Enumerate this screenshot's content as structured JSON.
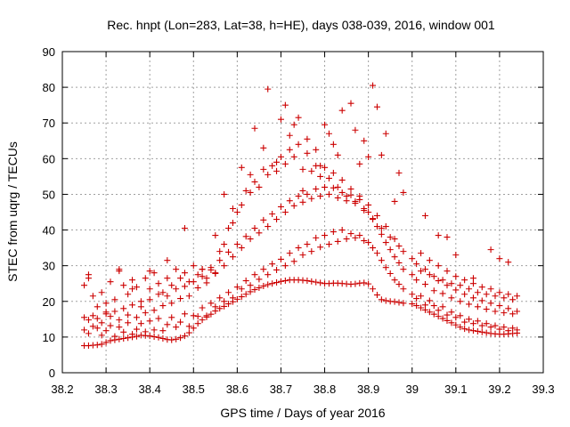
{
  "chart_data": {
    "type": "scatter",
    "title": "Rec. hnpt (Lon=283, Lat=38, h=HE), days 038-039, 2016, window 001",
    "xlabel": "GPS time / Days of year 2016",
    "ylabel": "STEC from uqrg / TECUs",
    "xlim": [
      38.2,
      39.3
    ],
    "ylim": [
      0,
      90
    ],
    "xticks": [
      "38.2",
      "38.3",
      "38.4",
      "38.5",
      "38.6",
      "38.7",
      "38.8",
      "38.9",
      "39",
      "39.1",
      "39.2",
      "39.3"
    ],
    "yticks": [
      "0",
      "10",
      "20",
      "30",
      "40",
      "50",
      "60",
      "70",
      "80",
      "90"
    ],
    "grid": true,
    "marker": "plus",
    "color": "#cc0000",
    "series": [
      {
        "x": [
          38.25,
          38.26,
          38.27,
          38.28,
          38.29,
          38.3,
          38.31,
          38.32,
          38.33,
          38.34,
          38.35,
          38.36,
          38.37,
          38.38,
          38.39,
          38.4,
          38.41,
          38.42,
          38.43,
          38.44,
          38.45,
          38.46,
          38.47,
          38.48,
          38.49,
          38.5,
          38.51,
          38.52,
          38.53,
          38.54,
          38.55,
          38.56,
          38.57,
          38.58,
          38.59,
          38.6,
          38.61,
          38.62,
          38.63,
          38.64,
          38.65,
          38.66,
          38.67,
          38.68,
          38.69,
          38.7,
          38.71,
          38.72,
          38.73,
          38.74,
          38.75,
          38.76,
          38.77,
          38.78,
          38.79,
          38.8,
          38.81,
          38.82,
          38.83,
          38.84,
          38.85,
          38.86,
          38.87,
          38.88,
          38.89,
          38.9,
          38.91,
          38.92,
          38.93,
          38.94,
          38.95,
          38.96,
          38.97,
          38.98,
          39.0,
          39.01,
          39.02,
          39.03,
          39.04,
          39.05,
          39.06,
          39.07,
          39.08,
          39.09,
          39.1,
          39.11,
          39.12,
          39.13,
          39.14,
          39.15,
          39.16,
          39.17,
          39.18,
          39.19,
          39.2,
          39.21,
          39.22,
          39.23,
          39.24
        ],
        "y": [
          7.6,
          7.6,
          7.7,
          7.8,
          8.0,
          8.5,
          9.0,
          9.2,
          9.4,
          9.6,
          9.8,
          10.0,
          10.2,
          10.5,
          10.4,
          10.3,
          10.1,
          9.9,
          9.6,
          9.3,
          9.2,
          9.4,
          9.8,
          10.3,
          11.2,
          12.5,
          13.8,
          14.8,
          15.6,
          16.4,
          17.3,
          18.0,
          18.6,
          19.3,
          19.9,
          20.6,
          21.3,
          22.0,
          22.7,
          23.3,
          23.8,
          24.3,
          24.7,
          25.0,
          25.3,
          25.6,
          25.8,
          26.0,
          26.0,
          26.0,
          25.9,
          25.8,
          25.6,
          25.4,
          25.2,
          25.0,
          25.0,
          25.1,
          25.1,
          25.0,
          24.9,
          24.8,
          24.9,
          25.1,
          25.2,
          24.9,
          23.5,
          21.8,
          20.5,
          20.2,
          20.0,
          19.9,
          19.7,
          19.5,
          19.3,
          18.8,
          18.2,
          17.6,
          17.0,
          16.4,
          15.8,
          15.2,
          14.6,
          14.0,
          13.4,
          12.8,
          12.3,
          12.0,
          11.8,
          11.6,
          11.4,
          11.2,
          11.0,
          10.9,
          10.8,
          10.8,
          10.9,
          11.0,
          11.1
        ]
      },
      {
        "x": [
          38.25,
          38.26,
          38.27,
          38.28,
          38.29,
          38.3,
          38.31,
          38.32,
          38.33,
          38.34,
          38.35,
          38.36,
          38.37,
          38.38,
          38.39,
          38.4,
          38.41,
          38.42,
          38.43,
          38.44,
          38.45,
          38.46,
          38.47,
          38.48,
          38.49,
          38.5,
          38.51,
          38.52,
          38.53,
          38.54,
          38.55,
          38.56,
          38.57,
          38.58,
          38.59,
          38.6,
          38.61,
          38.62,
          38.63,
          38.64,
          38.65,
          38.66,
          38.67,
          38.68,
          38.69,
          38.7,
          38.71,
          38.72,
          38.73,
          38.74,
          38.75,
          38.76,
          38.77,
          38.78,
          38.79,
          38.8,
          38.81,
          38.82,
          38.83,
          38.84,
          38.85,
          38.86,
          38.87,
          38.88,
          38.89,
          38.9,
          38.91,
          38.92,
          38.93,
          38.94,
          38.95,
          38.96,
          38.97,
          38.98,
          39.0,
          39.01,
          39.02,
          39.03,
          39.04,
          39.05,
          39.06,
          39.07,
          39.08,
          39.09,
          39.1,
          39.11,
          39.12,
          39.13,
          39.14,
          39.15,
          39.16,
          39.17,
          39.18,
          39.19,
          39.2,
          39.21,
          39.22,
          39.23,
          39.24
        ],
        "y": [
          12.0,
          11.0,
          13.0,
          12.5,
          10.5,
          11.8,
          13.2,
          10.2,
          12.8,
          11.4,
          14.0,
          10.8,
          12.2,
          13.8,
          11.5,
          14.5,
          12.0,
          15.2,
          11.8,
          13.5,
          15.5,
          12.8,
          14.2,
          16.5,
          13.0,
          16.0,
          15.8,
          18.2,
          16.0,
          19.5,
          18.5,
          21.0,
          20.0,
          22.5,
          21.0,
          24.0,
          23.5,
          25.8,
          24.5,
          27.5,
          26.2,
          29.0,
          27.5,
          30.5,
          28.8,
          31.8,
          30.0,
          33.5,
          31.2,
          35.0,
          33.0,
          36.0,
          34.0,
          37.8,
          35.2,
          38.5,
          36.0,
          39.5,
          36.8,
          40.0,
          37.5,
          39.0,
          37.8,
          38.5,
          37.0,
          36.5,
          35.0,
          33.5,
          31.5,
          29.5,
          27.8,
          26.0,
          24.8,
          23.5,
          22.0,
          20.8,
          21.5,
          19.0,
          20.2,
          18.8,
          17.5,
          18.5,
          16.2,
          17.0,
          15.5,
          16.0,
          14.2,
          15.0,
          13.8,
          14.5,
          13.2,
          13.8,
          12.8,
          13.2,
          12.2,
          12.8,
          11.8,
          12.5,
          12.0
        ]
      },
      {
        "x": [
          38.25,
          38.26,
          38.27,
          38.28,
          38.29,
          38.3,
          38.31,
          38.32,
          38.33,
          38.34,
          38.35,
          38.36,
          38.37,
          38.38,
          38.39,
          38.4,
          38.41,
          38.42,
          38.43,
          38.44,
          38.45,
          38.46,
          38.47,
          38.48,
          38.49,
          38.5,
          38.51,
          38.52,
          38.53,
          38.54,
          38.55,
          38.56,
          38.57,
          38.58,
          38.59,
          38.6,
          38.61,
          38.62,
          38.63,
          38.64,
          38.65,
          38.66,
          38.67,
          38.68,
          38.69,
          38.7,
          38.71,
          38.72,
          38.73,
          38.74,
          38.75,
          38.76,
          38.77,
          38.78,
          38.79,
          38.8,
          38.81,
          38.82,
          38.83,
          38.84,
          38.85,
          38.86,
          38.87,
          38.88,
          38.89,
          38.9,
          38.91,
          38.92,
          38.93,
          38.94,
          38.95,
          38.96,
          38.97,
          38.98,
          39.0,
          39.01,
          39.02,
          39.03,
          39.04,
          39.05,
          39.06,
          39.07,
          39.08,
          39.09,
          39.1,
          39.11,
          39.12,
          39.13,
          39.14,
          39.15,
          39.16,
          39.17,
          39.18,
          39.19,
          39.2,
          39.21,
          39.22,
          39.23,
          39.24
        ],
        "y": [
          15.5,
          14.8,
          16.0,
          15.2,
          14.0,
          16.5,
          15.8,
          17.2,
          14.8,
          18.0,
          16.2,
          19.0,
          15.5,
          18.5,
          16.8,
          20.5,
          17.5,
          22.0,
          18.8,
          21.5,
          19.5,
          23.5,
          20.8,
          24.2,
          21.5,
          25.5,
          23.8,
          27.0,
          25.2,
          28.8,
          27.8,
          31.5,
          30.0,
          33.8,
          32.5,
          36.0,
          35.0,
          38.2,
          37.5,
          40.5,
          39.2,
          42.8,
          41.0,
          44.5,
          43.0,
          46.5,
          45.0,
          48.2,
          46.8,
          49.5,
          47.8,
          50.0,
          48.8,
          51.5,
          49.5,
          52.0,
          50.0,
          51.8,
          49.0,
          50.5,
          48.2,
          49.8,
          47.5,
          48.5,
          46.0,
          45.0,
          43.2,
          41.0,
          38.8,
          36.5,
          34.5,
          32.5,
          30.8,
          29.0,
          27.5,
          26.0,
          28.5,
          24.8,
          27.5,
          23.0,
          25.8,
          22.2,
          24.5,
          21.0,
          23.2,
          20.0,
          22.0,
          19.2,
          21.0,
          18.5,
          20.2,
          17.8,
          19.5,
          17.2,
          18.8,
          16.8,
          18.0,
          16.5,
          17.2
        ]
      },
      {
        "x": [
          38.25,
          38.26,
          38.27,
          38.28,
          38.29,
          38.3,
          38.31,
          38.32,
          38.33,
          38.34,
          38.35,
          38.36,
          38.37,
          38.38,
          38.39,
          38.4,
          38.41,
          38.42,
          38.43,
          38.44,
          38.45,
          38.46,
          38.47,
          38.48,
          38.49,
          38.5,
          38.51,
          38.52,
          38.53,
          38.54,
          38.55,
          38.56,
          38.57,
          38.58,
          38.59,
          38.6,
          38.61,
          38.62,
          38.63,
          38.64,
          38.65,
          38.66,
          38.67,
          38.68,
          38.69,
          38.7,
          38.71,
          38.72,
          38.73,
          38.74,
          38.75,
          38.76,
          38.77,
          38.78,
          38.79,
          38.8,
          38.81,
          38.82,
          38.83,
          38.84,
          38.85,
          38.86,
          38.87,
          38.88,
          38.89,
          38.9,
          38.91,
          38.92,
          38.93,
          38.94,
          38.95,
          38.96,
          38.97,
          38.98,
          39.0,
          39.01,
          39.02,
          39.03,
          39.04,
          39.05,
          39.06,
          39.07,
          39.08,
          39.09,
          39.1,
          39.11,
          39.12,
          39.13,
          39.14,
          39.15,
          39.16,
          39.17,
          39.18,
          39.19,
          39.2,
          39.21,
          39.22,
          39.23,
          39.24
        ],
        "y": [
          24.5,
          26.5,
          21.5,
          18.5,
          22.5,
          19.5,
          25.5,
          20.5,
          28.5,
          24.5,
          22.0,
          26.0,
          24.0,
          20.0,
          26.5,
          23.5,
          28.0,
          25.0,
          22.5,
          26.5,
          24.5,
          29.0,
          26.5,
          28.0,
          25.5,
          30.0,
          27.5,
          29.0,
          26.5,
          29.5,
          28.0,
          34.0,
          36.0,
          40.5,
          42.0,
          45.0,
          47.0,
          51.0,
          50.5,
          53.5,
          52.0,
          57.0,
          55.5,
          58.0,
          56.5,
          60.5,
          58.5,
          62.5,
          60.5,
          64.0,
          57.0,
          61.5,
          56.5,
          58.0,
          55.0,
          57.5,
          54.5,
          56.0,
          52.0,
          54.0,
          49.5,
          51.5,
          48.0,
          49.5,
          45.5,
          47.0,
          43.0,
          44.0,
          40.5,
          41.0,
          38.0,
          37.5,
          35.5,
          34.0,
          32.0,
          30.5,
          33.5,
          29.0,
          31.5,
          27.0,
          30.0,
          26.0,
          28.5,
          25.0,
          27.0,
          24.5,
          26.0,
          23.5,
          25.0,
          22.5,
          24.0,
          22.0,
          23.5,
          21.5,
          22.5,
          21.0,
          22.0,
          20.5,
          21.5
        ]
      },
      {
        "x": [
          38.26,
          38.3,
          38.33,
          38.36,
          38.4,
          38.44,
          38.48,
          38.52,
          38.55,
          38.57,
          38.59,
          38.61,
          38.63,
          38.64,
          38.66,
          38.67,
          38.69,
          38.7,
          38.71,
          38.72,
          38.73,
          38.74,
          38.75,
          38.76,
          38.78,
          38.79,
          38.8,
          38.81,
          38.82,
          38.83,
          38.84,
          38.86,
          38.87,
          38.88,
          38.89,
          38.9,
          38.91,
          38.92,
          38.93,
          38.94,
          38.96,
          38.97,
          38.98,
          39.03,
          39.06,
          39.08,
          39.1,
          39.14,
          39.18,
          39.2,
          39.22
        ],
        "y": [
          27.5,
          17.0,
          29.0,
          23.5,
          28.5,
          31.5,
          40.5,
          29.0,
          38.5,
          50.0,
          46.0,
          57.5,
          55.5,
          68.5,
          63.0,
          79.5,
          59.0,
          71.0,
          75.0,
          66.5,
          69.5,
          71.5,
          51.0,
          65.5,
          62.5,
          58.0,
          69.5,
          67.0,
          64.0,
          61.0,
          73.5,
          75.5,
          68.0,
          58.5,
          65.0,
          60.5,
          80.5,
          74.5,
          61.0,
          67.0,
          48.0,
          56.0,
          50.5,
          44.0,
          38.5,
          38.0,
          33.0,
          26.5,
          34.5,
          32.0,
          31.0
        ]
      }
    ]
  }
}
